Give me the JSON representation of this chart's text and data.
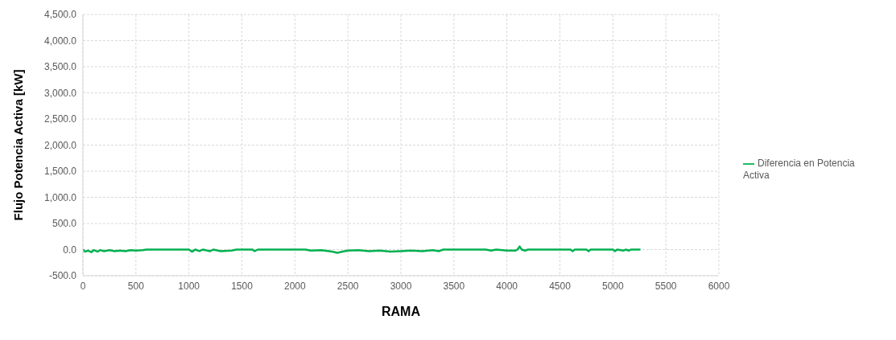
{
  "chart_data": {
    "type": "line",
    "xlabel": "RAMA",
    "ylabel": "Flujo Potencia Activa  [kW]",
    "xlim": [
      0,
      6000
    ],
    "xticks": [
      0,
      500,
      1000,
      1500,
      2000,
      2500,
      3000,
      3500,
      4000,
      4500,
      5000,
      5500,
      6000
    ],
    "ylim": [
      -500,
      4500
    ],
    "yticks": [
      {
        "value": -500,
        "label": "-500.0"
      },
      {
        "value": 0,
        "label": "0.0"
      },
      {
        "value": 500,
        "label": "500.0"
      },
      {
        "value": 1000,
        "label": "1,000.0"
      },
      {
        "value": 1500,
        "label": "1,500.0"
      },
      {
        "value": 2000,
        "label": "2,000.0"
      },
      {
        "value": 2500,
        "label": "2,500.0"
      },
      {
        "value": 3000,
        "label": "3,000.0"
      },
      {
        "value": 3500,
        "label": "3,500.0"
      },
      {
        "value": 4000,
        "label": "4,000.0"
      },
      {
        "value": 4500,
        "label": "4,500.0"
      }
    ],
    "grid": true,
    "legend": "right",
    "marker": "none",
    "line_style": "solid",
    "x": [
      0,
      20,
      50,
      80,
      100,
      140,
      160,
      200,
      250,
      300,
      350,
      400,
      450,
      500,
      560,
      600,
      1000,
      1030,
      1060,
      1100,
      1130,
      1200,
      1230,
      1300,
      1400,
      1450,
      1600,
      1620,
      1650,
      2100,
      2150,
      2250,
      2350,
      2400,
      2450,
      2500,
      2600,
      2700,
      2800,
      2900,
      3000,
      3100,
      3200,
      3300,
      3360,
      3400,
      3800,
      3850,
      3900,
      4000,
      4080,
      4100,
      4120,
      4140,
      4170,
      4200,
      4600,
      4620,
      4640,
      4750,
      4770,
      4790,
      5000,
      5020,
      5040,
      5100,
      5120,
      5150,
      5170,
      5260
    ],
    "series": [
      {
        "name": "Diferencia en Potencia Activa",
        "color": "#00b050",
        "values": [
          0,
          -40,
          -20,
          -50,
          -10,
          -40,
          -10,
          -30,
          -10,
          -30,
          -20,
          -30,
          -10,
          -20,
          -10,
          0,
          0,
          -40,
          0,
          -30,
          0,
          -30,
          0,
          -30,
          -20,
          0,
          0,
          -30,
          0,
          0,
          -20,
          -10,
          -40,
          -60,
          -40,
          -20,
          -10,
          -30,
          -20,
          -40,
          -30,
          -20,
          -30,
          -10,
          -30,
          0,
          0,
          -20,
          0,
          -20,
          -20,
          0,
          60,
          0,
          -20,
          0,
          0,
          -30,
          0,
          0,
          -30,
          0,
          0,
          -30,
          0,
          -20,
          0,
          -20,
          0,
          0
        ]
      }
    ]
  }
}
